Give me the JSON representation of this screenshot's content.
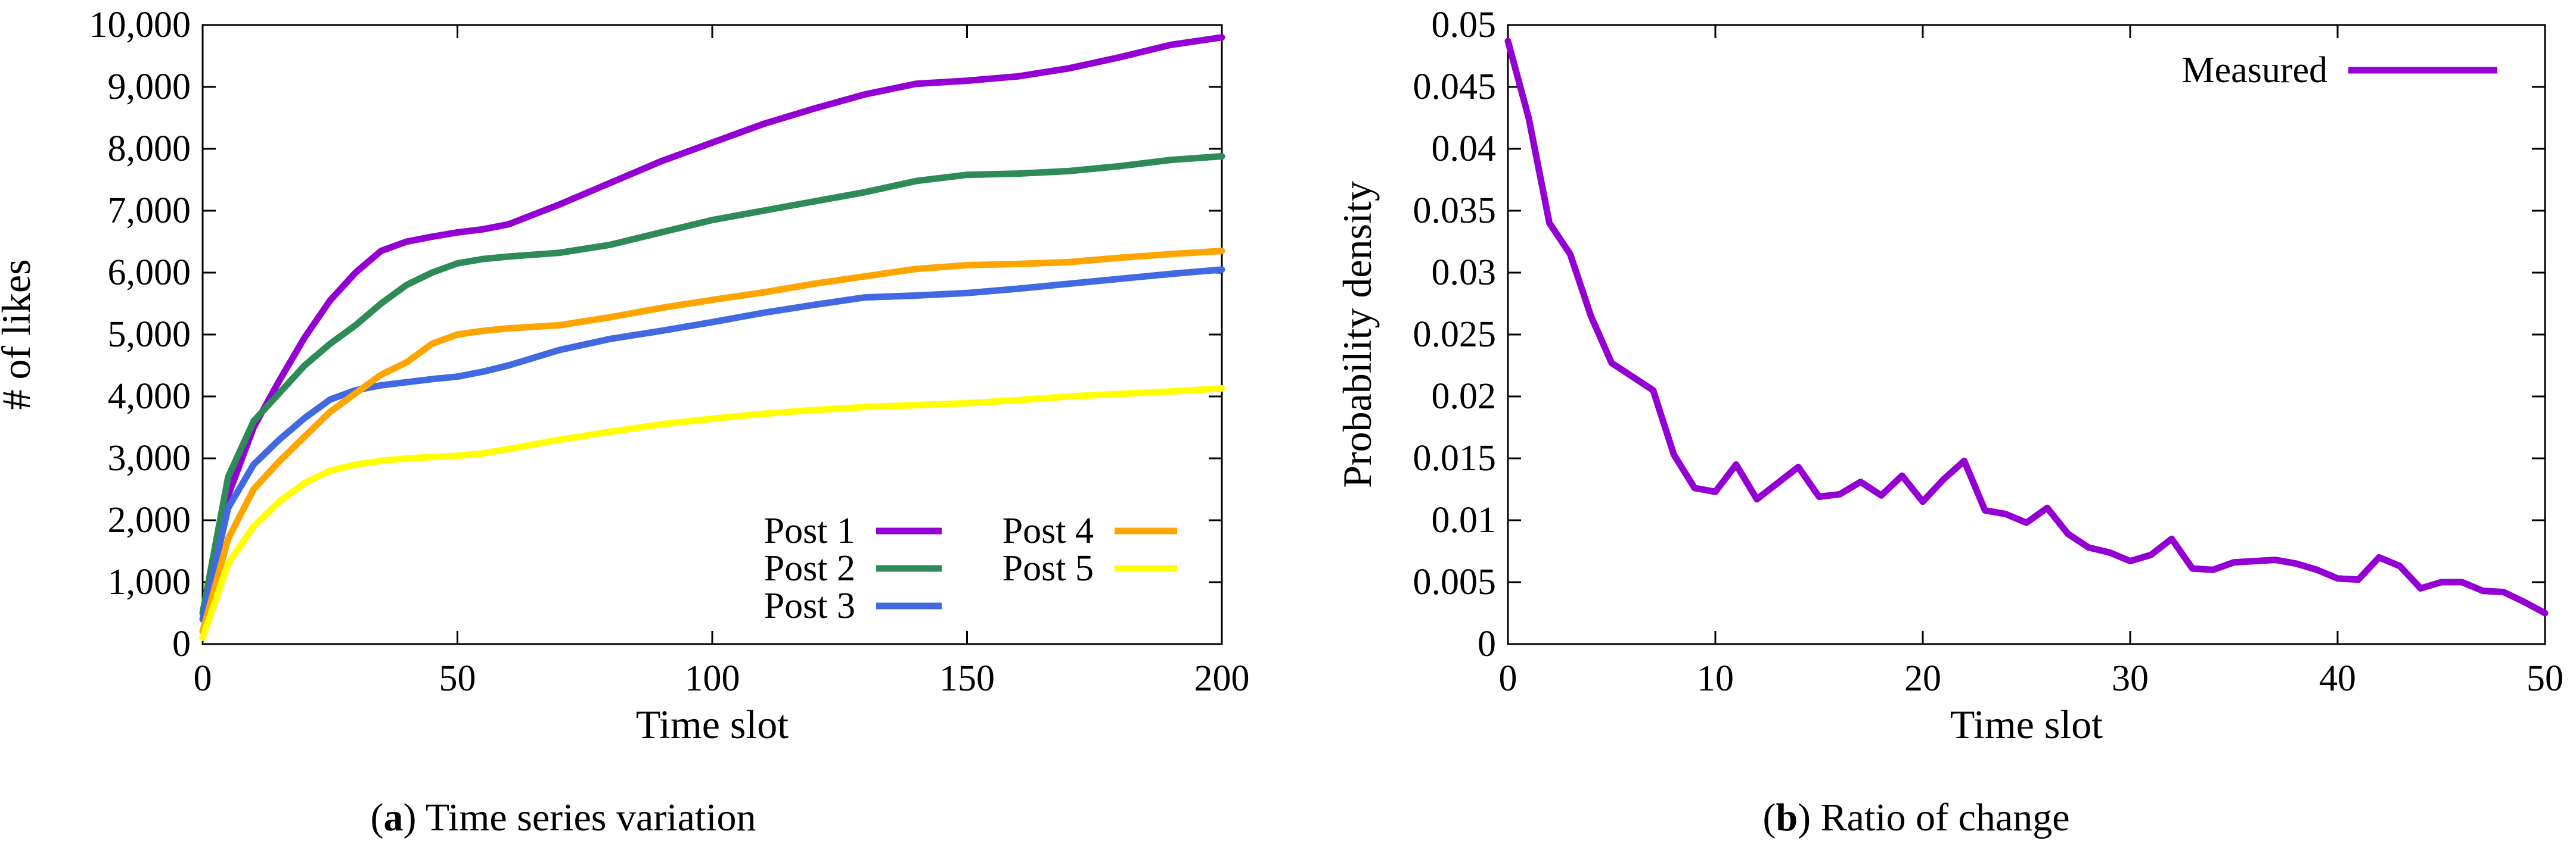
{
  "chart_data": [
    {
      "type": "line",
      "panel": "a",
      "xlabel": "Time slot",
      "ylabel": "# of likes",
      "xlim": [
        0,
        200
      ],
      "ylim": [
        0,
        10000
      ],
      "xticks": [
        0,
        50,
        100,
        150,
        200
      ],
      "xtick_labels": [
        "0",
        "50",
        "100",
        "150",
        "200"
      ],
      "yticks": [
        0,
        1000,
        2000,
        3000,
        4000,
        5000,
        6000,
        7000,
        8000,
        9000,
        10000
      ],
      "ytick_labels": [
        "0",
        "1,000",
        "2,000",
        "3,000",
        "4,000",
        "5,000",
        "6,000",
        "7,000",
        "8,000",
        "9,000",
        "10,000"
      ],
      "legend": "bottom-right",
      "series": [
        {
          "name": "Post 1",
          "color": "#9400d3",
          "x": [
            0,
            5,
            10,
            15,
            20,
            25,
            30,
            35,
            40,
            45,
            50,
            55,
            60,
            70,
            80,
            90,
            100,
            110,
            120,
            130,
            140,
            150,
            160,
            170,
            180,
            190,
            200
          ],
          "y": [
            500,
            2400,
            3500,
            4250,
            4950,
            5550,
            6000,
            6350,
            6500,
            6580,
            6650,
            6700,
            6780,
            7100,
            7450,
            7800,
            8100,
            8400,
            8650,
            8880,
            9050,
            9100,
            9170,
            9300,
            9480,
            9680,
            9800
          ]
        },
        {
          "name": "Post 2",
          "color": "#2e8b57",
          "x": [
            0,
            5,
            10,
            15,
            20,
            25,
            30,
            35,
            40,
            45,
            50,
            55,
            60,
            70,
            80,
            90,
            100,
            110,
            120,
            130,
            140,
            150,
            160,
            170,
            180,
            190,
            200
          ],
          "y": [
            500,
            2700,
            3600,
            4050,
            4500,
            4850,
            5150,
            5500,
            5800,
            6000,
            6150,
            6220,
            6260,
            6320,
            6450,
            6650,
            6850,
            7000,
            7150,
            7300,
            7480,
            7580,
            7600,
            7640,
            7720,
            7820,
            7880
          ]
        },
        {
          "name": "Post 3",
          "color": "#4169e1",
          "x": [
            0,
            5,
            10,
            15,
            20,
            25,
            30,
            35,
            40,
            45,
            50,
            55,
            60,
            70,
            80,
            90,
            100,
            110,
            120,
            130,
            140,
            150,
            160,
            170,
            180,
            190,
            200
          ],
          "y": [
            400,
            2200,
            2900,
            3300,
            3650,
            3950,
            4100,
            4180,
            4230,
            4280,
            4320,
            4400,
            4500,
            4750,
            4930,
            5060,
            5200,
            5350,
            5480,
            5600,
            5630,
            5670,
            5740,
            5820,
            5900,
            5980,
            6050
          ]
        },
        {
          "name": "Post 4",
          "color": "#ffa500",
          "x": [
            0,
            5,
            10,
            15,
            20,
            25,
            30,
            35,
            40,
            45,
            50,
            55,
            60,
            70,
            80,
            90,
            100,
            110,
            120,
            130,
            140,
            150,
            160,
            170,
            180,
            190,
            200
          ],
          "y": [
            200,
            1700,
            2500,
            2950,
            3350,
            3750,
            4050,
            4350,
            4550,
            4850,
            5000,
            5060,
            5100,
            5150,
            5280,
            5430,
            5560,
            5680,
            5820,
            5940,
            6060,
            6120,
            6140,
            6170,
            6240,
            6300,
            6350
          ]
        },
        {
          "name": "Post 5",
          "color": "#ffff00",
          "x": [
            0,
            5,
            10,
            15,
            20,
            25,
            30,
            35,
            40,
            45,
            50,
            55,
            60,
            70,
            80,
            90,
            100,
            110,
            120,
            130,
            140,
            150,
            160,
            170,
            180,
            190,
            200
          ],
          "y": [
            100,
            1300,
            1900,
            2300,
            2600,
            2800,
            2900,
            2960,
            3000,
            3020,
            3040,
            3080,
            3150,
            3300,
            3430,
            3550,
            3640,
            3720,
            3780,
            3830,
            3860,
            3890,
            3940,
            4000,
            4040,
            4080,
            4130
          ]
        }
      ]
    },
    {
      "type": "line",
      "panel": "b",
      "xlabel": "Time slot",
      "ylabel": "Probability density",
      "xlim": [
        0,
        50
      ],
      "ylim": [
        0,
        0.05
      ],
      "xticks": [
        0,
        10,
        20,
        30,
        40,
        50
      ],
      "xtick_labels": [
        "0",
        "10",
        "20",
        "30",
        "40",
        "50"
      ],
      "yticks": [
        0,
        0.005,
        0.01,
        0.015,
        0.02,
        0.025,
        0.03,
        0.035,
        0.04,
        0.045,
        0.05
      ],
      "ytick_labels": [
        "0",
        "0.005",
        "0.01",
        "0.015",
        "0.02",
        "0.025",
        "0.03",
        "0.035",
        "0.04",
        "0.045",
        "0.05"
      ],
      "legend": "top-right",
      "series": [
        {
          "name": "Measured",
          "color": "#9400d3",
          "x": [
            0,
            1,
            2,
            3,
            4,
            5,
            6,
            7,
            8,
            9,
            10,
            11,
            12,
            13,
            14,
            15,
            16,
            17,
            18,
            19,
            20,
            21,
            22,
            23,
            24,
            25,
            26,
            27,
            28,
            29,
            30,
            31,
            32,
            33,
            34,
            35,
            36,
            37,
            38,
            39,
            40,
            41,
            42,
            43,
            44,
            45,
            46,
            47,
            48,
            49,
            50
          ],
          "y": [
            0.0487,
            0.0425,
            0.034,
            0.0315,
            0.0265,
            0.0227,
            0.0216,
            0.0205,
            0.0153,
            0.0126,
            0.0123,
            0.0145,
            0.0117,
            0.013,
            0.0143,
            0.0119,
            0.0121,
            0.0131,
            0.012,
            0.0136,
            0.0115,
            0.0133,
            0.0148,
            0.0108,
            0.0105,
            0.0098,
            0.011,
            0.0089,
            0.0078,
            0.0074,
            0.0067,
            0.0072,
            0.0085,
            0.0061,
            0.006,
            0.0066,
            0.0067,
            0.0068,
            0.0065,
            0.006,
            0.0053,
            0.0052,
            0.007,
            0.0063,
            0.0045,
            0.005,
            0.005,
            0.0043,
            0.0042,
            0.0034,
            0.0025
          ]
        }
      ]
    }
  ],
  "captions": {
    "a": {
      "label": "a",
      "text": "Time series variation"
    },
    "b": {
      "label": "b",
      "text": "Ratio of change"
    }
  }
}
